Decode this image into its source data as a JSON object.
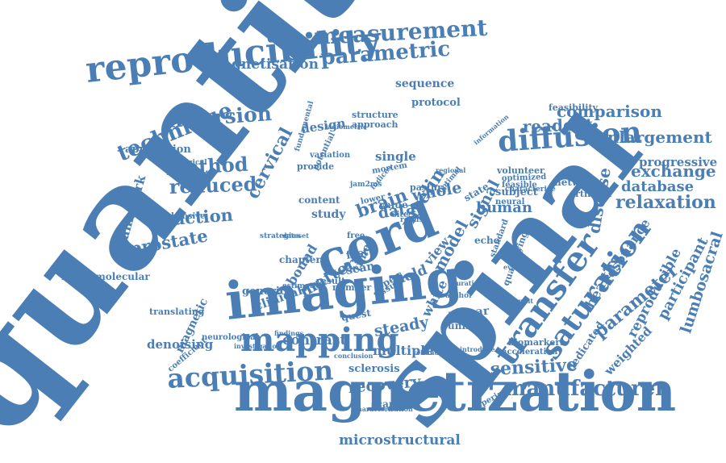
{
  "color": "#4a7eb4",
  "words": {
    "quantitative": "quantitative",
    "spinal": "spinal",
    "magnetization": "magnetization",
    "cord": "cord",
    "imaging": "imaging",
    "reproducibility": "reproducibility",
    "mapping": "mapping",
    "acquisition": "acquisition",
    "transfer": "transfer",
    "saturation": "saturation",
    "diffusion": "diffusion",
    "measurement": "measurement",
    "parametric": "parametric",
    "technique": "technique",
    "inversion": "inversion",
    "method": "method",
    "reduced": "reduced",
    "fraction": "fraction",
    "prostate": "prostate",
    "cervical": "cervical",
    "brain": "brain",
    "myelin": "myelin",
    "matter": "matter",
    "relaxation": "relaxation",
    "comparison": "comparison",
    "enlargement": "enlargement",
    "readout": "readout",
    "exchange": "exchange",
    "database": "database",
    "progressive": "progressive",
    "disease": "disease",
    "parameter": "parameter",
    "reproducible": "reproducible",
    "participant": "participant",
    "lumbosacral": "lumbosacral",
    "manufacturer": "manufacturer",
    "sensitive": "sensitive",
    "recovery": "recovery",
    "microstructural": "microstructural",
    "magnetisation": "magnetisation",
    "framework": "framework",
    "macromolecular": "macromolecular",
    "denoising": "denoising",
    "translating": "translating",
    "coefficient": "coefficient",
    "magnetic": "magnetic",
    "clinical": "clinical",
    "contrast": "contrast",
    "steady": "steady",
    "multiple": "multiple",
    "field": "field",
    "model": "model",
    "human": "human",
    "signal": "signal",
    "whole": "whole",
    "data": "data",
    "design": "design",
    "single": "single",
    "application": "application",
    "sequence": "sequence",
    "protocol": "protocol",
    "feasibility": "feasibility",
    "network": "network",
    "artificial": "artificial",
    "subject": "subject",
    "healthy": "healthy",
    "resonance": "resonance",
    "weighted": "weighted",
    "dedicated": "dedicated",
    "biomarkers": "biomarkers",
    "experiment": "experiment",
    "sclerosis": "sclerosis",
    "white": "white",
    "planar": "planar",
    "unified": "unified",
    "quest": "quest",
    "tissue": "tissue",
    "open": "open",
    "bound": "bound",
    "generic": "generic",
    "neurological": "neurological",
    "time": "time",
    "scan": "scan",
    "fast": "fast",
    "study": "study",
    "content": "content",
    "comprehensive": "comprehensive",
    "pathological": "pathological",
    "variation": "variation",
    "provide": "provide",
    "mortem": "mortem",
    "lower": "lower",
    "pastur": "pastur",
    "value": "value",
    "state": "state",
    "echo": "echo",
    "scanner": "scanner",
    "approach": "approach",
    "structure": "structure",
    "potential": "potential",
    "view": "view",
    "quantifying": "quantifying",
    "characterize": "characterize",
    "volunteer": "volunteer",
    "optimized": "optimized",
    "feasible": "feasible",
    "neural": "neural",
    "standard": "standard",
    "result": "result",
    "number": "number",
    "chapter": "chapter",
    "estimation": "estimation",
    "strategies": "strategies",
    "dataset": "dataset",
    "conclusion": "conclusion",
    "redundant": "redundant",
    "introduce": "introduce",
    "acceleration": "acceleration",
    "characterization": "characterization",
    "different": "different",
    "author": "author",
    "duration": "duration",
    "fundamental": "fundamental",
    "radiometric": "radiometric",
    "jam2ms": "jam2ms",
    "site": "site",
    "robust": "robust",
    "free": "free",
    "indices": "indices",
    "optimal": "optimal",
    "regional": "regional",
    "information": "information",
    "investigation": "investigation",
    "findings": "findings",
    "evaluation": "evaluation"
  }
}
